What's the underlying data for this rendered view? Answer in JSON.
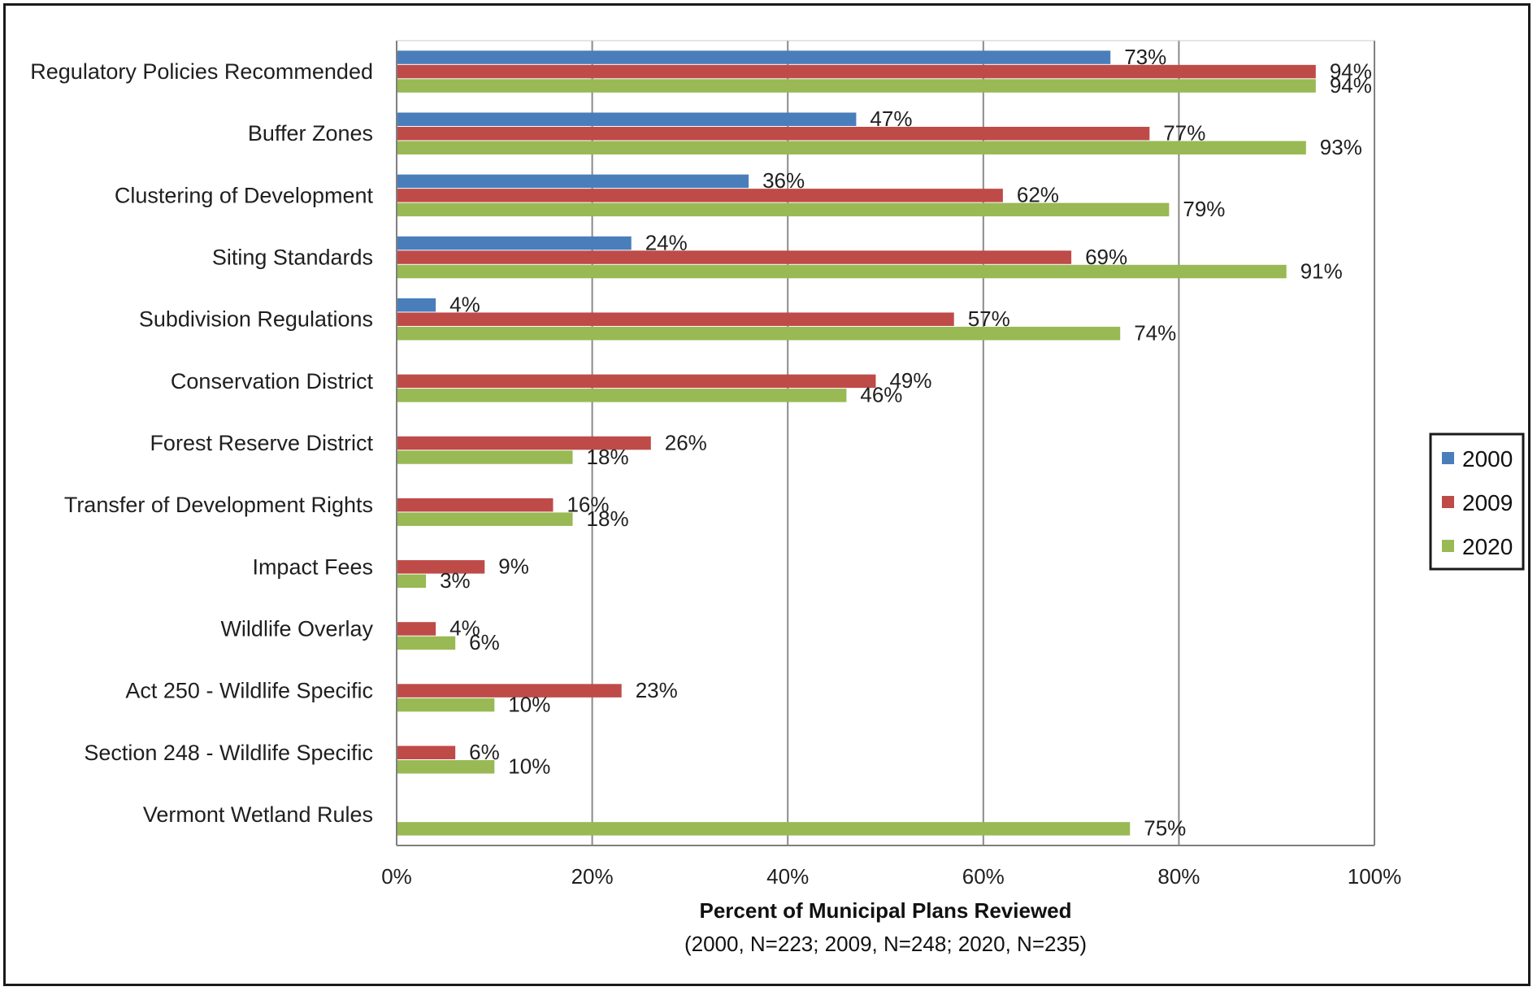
{
  "chart_data": {
    "type": "bar",
    "orientation": "horizontal",
    "xlabel": "Percent of Municipal Plans Reviewed",
    "xlabel_note": "(2000, N=223; 2009, N=248; 2020, N=235)",
    "xlim": [
      0,
      100
    ],
    "x_ticks": [
      "0%",
      "20%",
      "40%",
      "60%",
      "80%",
      "100%"
    ],
    "grid": "vertical major gridlines",
    "legend_position": "right",
    "categories": [
      "Regulatory Policies Recommended",
      "Buffer Zones",
      "Clustering of Development",
      "Siting Standards",
      "Subdivision Regulations",
      "Conservation District",
      "Forest Reserve District",
      "Transfer of Development Rights",
      "Impact Fees",
      "Wildlife Overlay",
      "Act 250 -  Wildlife Specific",
      "Section 248 - Wildlife Specific",
      "Vermont Wetland Rules"
    ],
    "series": [
      {
        "name": "2000",
        "color": "#4a7ebb",
        "values": [
          73,
          47,
          36,
          24,
          4,
          null,
          null,
          null,
          null,
          null,
          null,
          null,
          null
        ]
      },
      {
        "name": "2009",
        "color": "#be4b48",
        "values": [
          94,
          77,
          62,
          69,
          57,
          49,
          26,
          16,
          9,
          4,
          23,
          6,
          null
        ]
      },
      {
        "name": "2020",
        "color": "#98b954",
        "values": [
          94,
          93,
          79,
          91,
          74,
          46,
          18,
          18,
          3,
          6,
          10,
          10,
          75
        ]
      }
    ],
    "value_suffix": "%"
  }
}
